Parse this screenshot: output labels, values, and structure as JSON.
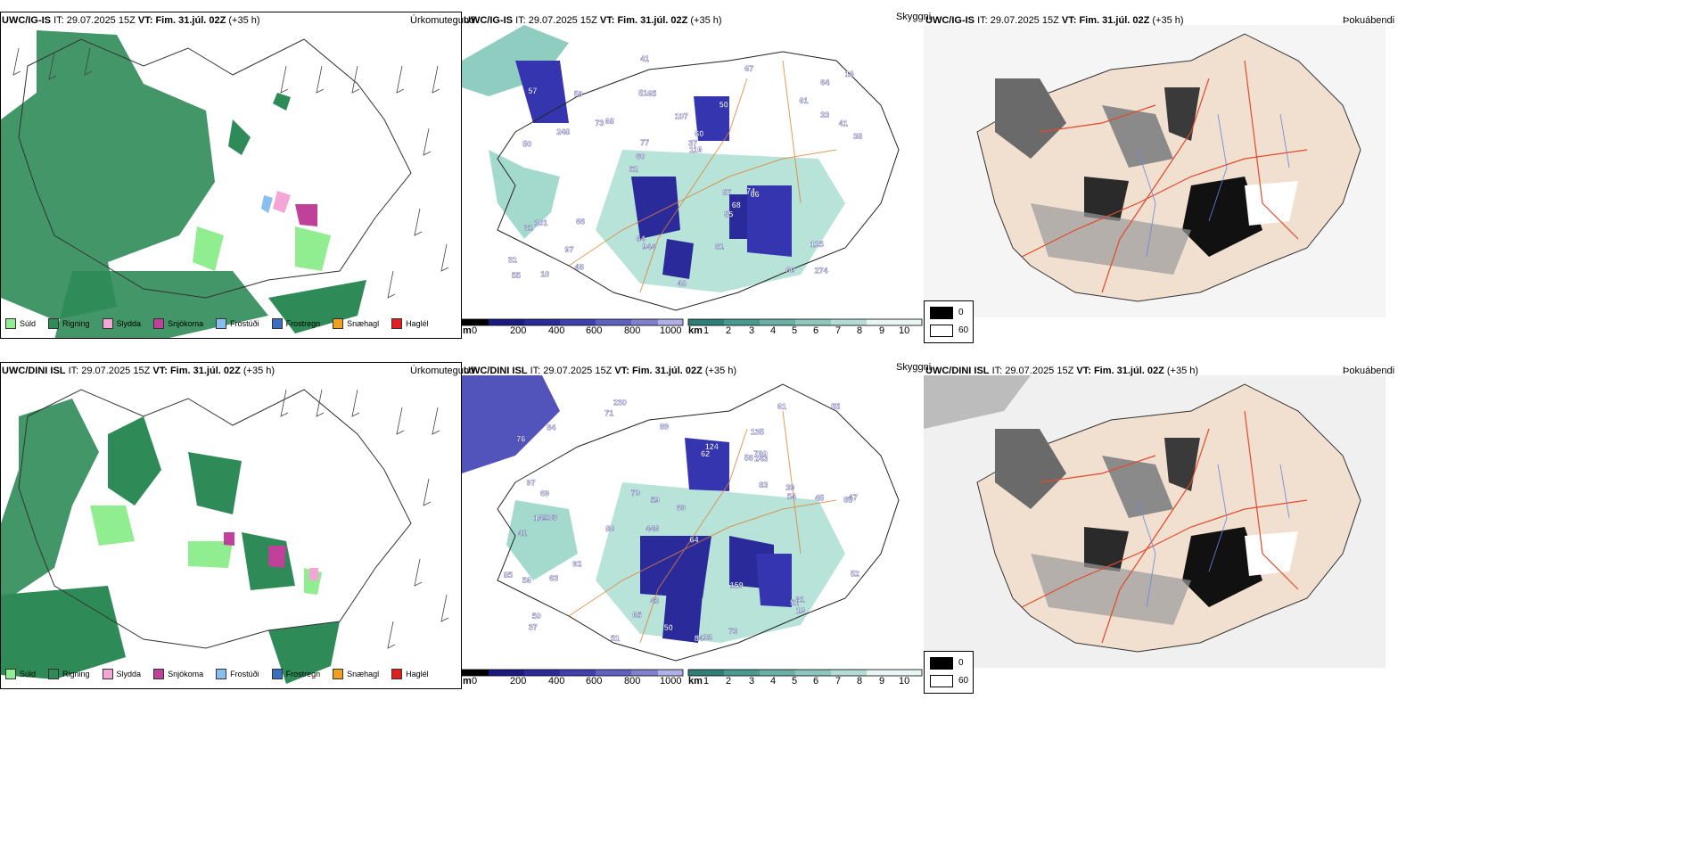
{
  "rows": [
    {
      "model": "UWC/IG-IS",
      "it_label": "IT:",
      "it": "29.07.2025 15Z",
      "vt_label": "VT:",
      "vt": "Fim. 31.júl. 02Z",
      "lead": "(+35 h)"
    },
    {
      "model": "UWC/DINI ISL",
      "it_label": "IT:",
      "it": "29.07.2025 15Z",
      "vt_label": "VT:",
      "vt": "Fim. 31.júl. 02Z",
      "lead": "(+35 h)"
    }
  ],
  "titles": {
    "precip_type": "Úrkomutegund",
    "visibility": "Skyggni",
    "fog_index": "Þokuábendi"
  },
  "precip_legend": [
    {
      "label": "Súld",
      "color": "#90ee90"
    },
    {
      "label": "Rigning",
      "color": "#2e8b57"
    },
    {
      "label": "Slydda",
      "color": "#f4a6d7"
    },
    {
      "label": "Snjókoma",
      "color": "#c0409a"
    },
    {
      "label": "Frostúði",
      "color": "#87bfef"
    },
    {
      "label": "Frostregn",
      "color": "#3a6ec0"
    },
    {
      "label": "Snæhagl",
      "color": "#f0a020"
    },
    {
      "label": "Haglél",
      "color": "#e02020"
    }
  ],
  "ceiling_bar": {
    "unit": "m",
    "ticks": [
      "0",
      "200",
      "400",
      "600",
      "800",
      "1000"
    ]
  },
  "vis_bar": {
    "unit": "km",
    "ticks": [
      "1",
      "2",
      "3",
      "4",
      "5",
      "6",
      "7",
      "8",
      "9",
      "10"
    ]
  },
  "fog_legend": {
    "low": "0",
    "high": "60"
  },
  "ceiling_labels_top": [
    "274",
    "50",
    "64",
    "52",
    "50",
    "10",
    "51",
    "107",
    "101",
    "68",
    "31",
    "97",
    "65",
    "60",
    "66",
    "57",
    "41",
    "38",
    "87",
    "33",
    "60",
    "64",
    "77",
    "59",
    "67",
    "66",
    "60",
    "125",
    "74",
    "48",
    "73",
    "248",
    "55",
    "48",
    "41",
    "37",
    "55",
    "944",
    "116",
    "31",
    "61",
    "16",
    "68",
    "81"
  ],
  "ceiling_labels_bottom": [
    "230",
    "135",
    "85",
    "446",
    "64",
    "103",
    "76",
    "58",
    "41",
    "62",
    "69",
    "37",
    "71",
    "80",
    "84",
    "33",
    "43",
    "61",
    "83",
    "92",
    "69",
    "169",
    "47",
    "45",
    "85",
    "97",
    "59",
    "54",
    "31",
    "56",
    "51",
    "124",
    "63",
    "70",
    "159",
    "52",
    "39",
    "65",
    "55",
    "89",
    "50",
    "51",
    "73",
    "84",
    "50",
    "243",
    "19",
    "780"
  ]
}
